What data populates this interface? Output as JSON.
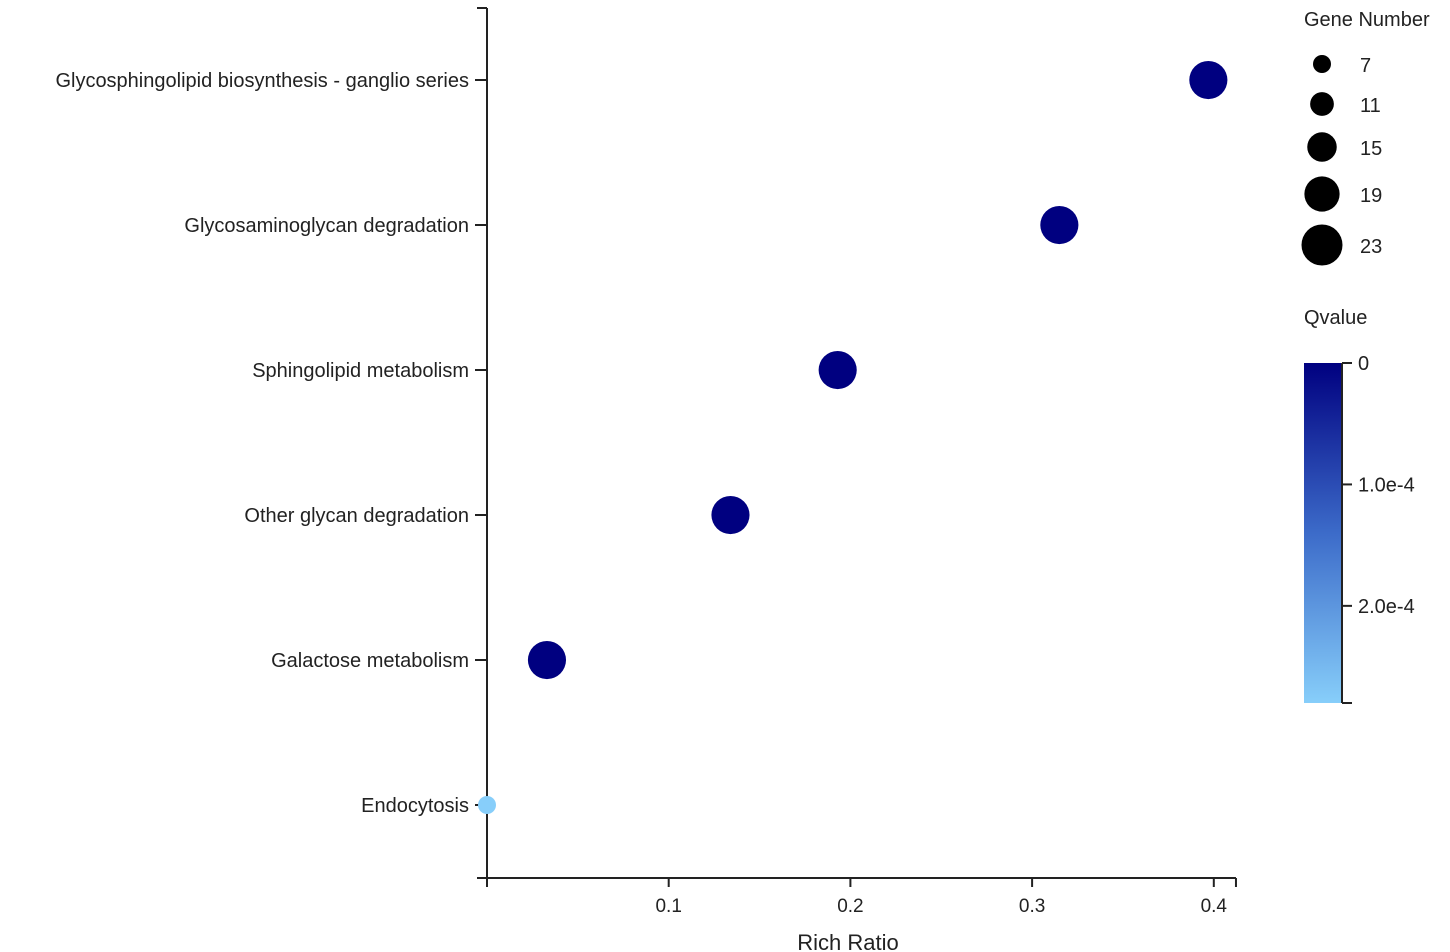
{
  "chart_data": {
    "type": "scatter",
    "xlabel": "Rich Ratio",
    "x_ticks": [
      0.1,
      0.2,
      0.3,
      0.4
    ],
    "xlim": [
      0,
      0.41
    ],
    "categories": [
      "Endocytosis",
      "Galactose metabolism",
      "Other glycan degradation",
      "Sphingolipid metabolism",
      "Glycosaminoglycan degradation",
      "Glycosphingolipid biosynthesis - ganglio series"
    ],
    "points": [
      {
        "category": "Endocytosis",
        "rich_ratio": 0.0,
        "gene_number": 7,
        "qvalue": 0.00028
      },
      {
        "category": "Galactose metabolism",
        "rich_ratio": 0.033,
        "gene_number": 21,
        "qvalue": 0.0
      },
      {
        "category": "Other glycan degradation",
        "rich_ratio": 0.134,
        "gene_number": 21,
        "qvalue": 0.0
      },
      {
        "category": "Sphingolipid metabolism",
        "rich_ratio": 0.193,
        "gene_number": 21,
        "qvalue": 0.0
      },
      {
        "category": "Glycosaminoglycan degradation",
        "rich_ratio": 0.315,
        "gene_number": 21,
        "qvalue": 0.0
      },
      {
        "category": "Glycosphingolipid biosynthesis - ganglio series",
        "rich_ratio": 0.397,
        "gene_number": 21,
        "qvalue": 0.0
      }
    ],
    "size_legend": {
      "title": "Gene Number",
      "values": [
        7,
        11,
        15,
        19,
        23
      ]
    },
    "color_legend": {
      "title": "Qvalue",
      "min": 0,
      "max": 0.00028,
      "ticks": [
        {
          "value": 0,
          "label": "0"
        },
        {
          "value": 0.0001,
          "label": "1.0e-4"
        },
        {
          "value": 0.0002,
          "label": "2.0e-4"
        }
      ],
      "color_low": "#000080",
      "color_mid": "#3c6bc9",
      "color_high": "#87cefa"
    }
  }
}
